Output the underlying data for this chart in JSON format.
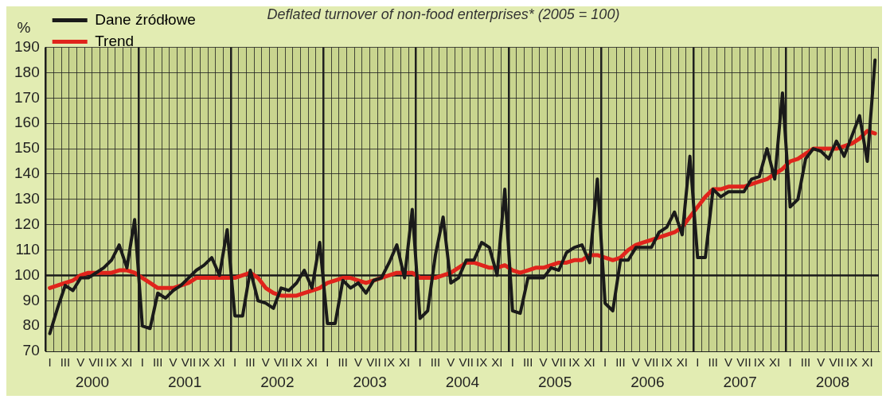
{
  "chart_data": {
    "type": "line",
    "title": "Deflated turnover of non-food enterprises* (2005 = 100)",
    "ylabel": "%",
    "categories": [
      "I",
      null,
      "III",
      null,
      "V",
      null,
      "VII",
      null,
      "IX",
      null,
      "XI",
      null,
      "I",
      null,
      "III",
      null,
      "V",
      null,
      "VII",
      null,
      "IX",
      null,
      "XI",
      null,
      "I",
      null,
      "III",
      null,
      "V",
      null,
      "VII",
      null,
      "IX",
      null,
      "XI",
      null,
      "I",
      null,
      "III",
      null,
      "V",
      null,
      "VII",
      null,
      "IX",
      null,
      "XI",
      null,
      "I",
      null,
      "III",
      null,
      "V",
      null,
      "VII",
      null,
      "IX",
      null,
      "XI",
      null,
      "I",
      null,
      "III",
      null,
      "V",
      null,
      "VII",
      null,
      "IX",
      null,
      "XI",
      null,
      "I",
      null,
      "III",
      null,
      "V",
      null,
      "VII",
      null,
      "IX",
      null,
      "XI",
      null,
      "I",
      null,
      "III",
      null,
      "V",
      null,
      "VII",
      null,
      "IX",
      null,
      "XI",
      null,
      "I",
      null,
      "III",
      null,
      "V",
      null,
      "VII",
      null,
      "IX",
      null,
      "XI",
      null
    ],
    "annotations": [
      "2000",
      "2001",
      "2002",
      "2003",
      "2004",
      "2005",
      "2006",
      "2007",
      "2008"
    ],
    "series": [
      {
        "name": "Dane źródłowe",
        "color": "#1a1a1a",
        "values": [
          77,
          87,
          96,
          94,
          99,
          99,
          101,
          103,
          106,
          112,
          103,
          122,
          80,
          79,
          93,
          91,
          94,
          96,
          99,
          102,
          104,
          107,
          100,
          118,
          84,
          84,
          102,
          90,
          89,
          87,
          95,
          94,
          97,
          102,
          95,
          113,
          81,
          81,
          98,
          95,
          97,
          93,
          98,
          99,
          105,
          112,
          99,
          126,
          83,
          86,
          108,
          123,
          97,
          99,
          106,
          106,
          113,
          111,
          100,
          134,
          86,
          85,
          99,
          99,
          99,
          103,
          102,
          109,
          111,
          112,
          105,
          138,
          89,
          86,
          106,
          106,
          111,
          111,
          111,
          117,
          119,
          125,
          116,
          147,
          107,
          107,
          134,
          131,
          133,
          133,
          133,
          138,
          139,
          150,
          138,
          172,
          127,
          130,
          146,
          150,
          149,
          146,
          153,
          147,
          155,
          163,
          145,
          185
        ]
      },
      {
        "name": "Trend",
        "color": "#e0241c",
        "values": [
          95,
          96,
          97,
          98,
          100,
          101,
          101,
          101,
          101,
          102,
          102,
          101,
          99,
          97,
          95,
          95,
          95,
          96,
          97,
          99,
          99,
          99,
          99,
          99,
          99,
          100,
          101,
          99,
          95,
          93,
          92,
          92,
          92,
          93,
          94,
          95,
          97,
          98,
          99,
          99,
          98,
          97,
          98,
          99,
          100,
          101,
          101,
          101,
          99,
          99,
          99,
          100,
          101,
          103,
          105,
          105,
          104,
          103,
          103,
          104,
          102,
          101,
          102,
          103,
          103,
          104,
          105,
          105,
          106,
          106,
          108,
          108,
          107,
          106,
          107,
          110,
          112,
          113,
          114,
          115,
          116,
          117,
          119,
          123,
          127,
          131,
          134,
          134,
          135,
          135,
          135,
          136,
          137,
          138,
          140,
          142,
          145,
          146,
          148,
          150,
          150,
          150,
          150,
          151,
          152,
          154,
          157,
          156
        ]
      }
    ],
    "ylim": [
      70,
      190
    ],
    "yticks": [
      70,
      80,
      90,
      100,
      110,
      120,
      130,
      140,
      150,
      160,
      170,
      180,
      190
    ],
    "ref_lines": [
      {
        "axis": "y",
        "value": 100,
        "color": "#1a1a1a"
      }
    ],
    "grid": true,
    "legend": "top left",
    "line_style": "solid",
    "marker": "none"
  }
}
